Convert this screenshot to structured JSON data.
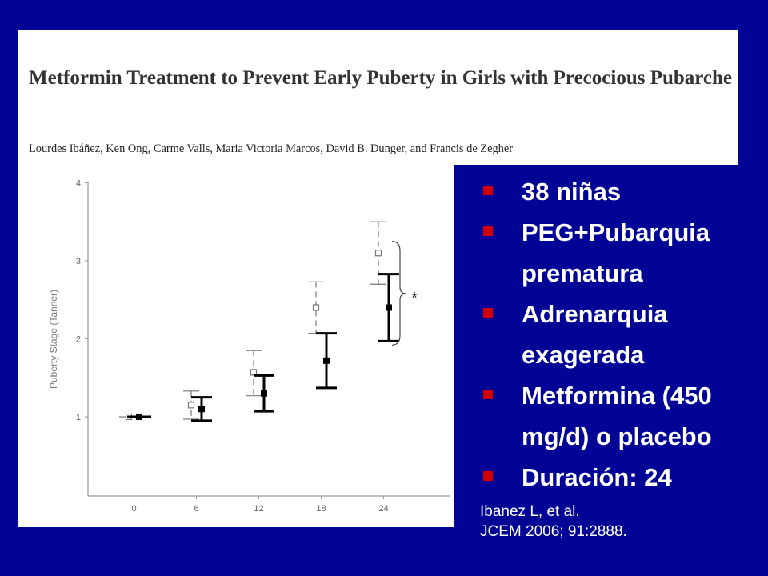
{
  "paper": {
    "title": "Metformin Treatment to Prevent Early Puberty in Girls with Precocious Pubarche",
    "authors": "Lourdes Ibáñez, Ken Ong, Carme Valls, Maria Victoria Marcos, David B. Dunger, and Francis de Zegher"
  },
  "bullets": [
    {
      "text": "38 niñas"
    },
    {
      "text": "PEG+Pubarquia prematura"
    },
    {
      "text": "Adrenarquia exagerada"
    },
    {
      "text": "Metformina (450 mg/d) o placebo"
    },
    {
      "text": "Duración: 24"
    }
  ],
  "citation": {
    "line1": "Ibanez L, et al.",
    "line2": "JCEM 2006; 91:2888."
  },
  "colors": {
    "background": "#020495",
    "bullet_marker": "#d40000",
    "placebo": "#777777",
    "metformin": "#000000"
  },
  "chart_data": {
    "type": "scatter",
    "ylabel": "Puberty Stage (Tanner)",
    "xlabel": "",
    "x": [
      0,
      6,
      12,
      18,
      24
    ],
    "x_ticks": [
      "0",
      "6",
      "12",
      "18",
      "24"
    ],
    "y_ticks": [
      "1",
      "2",
      "3",
      "4"
    ],
    "ylim": [
      0,
      4
    ],
    "series": [
      {
        "style": "open squares, dashed error bars",
        "mean": [
          1.0,
          1.15,
          1.57,
          2.4,
          3.1
        ],
        "lower": [
          1.0,
          0.97,
          1.27,
          2.07,
          2.7
        ],
        "upper": [
          1.0,
          1.33,
          1.85,
          2.73,
          3.5
        ]
      },
      {
        "style": "filled squares, solid error bars",
        "mean": [
          1.0,
          1.1,
          1.3,
          1.72,
          2.4
        ],
        "lower": [
          1.0,
          0.95,
          1.07,
          1.37,
          1.97
        ],
        "upper": [
          1.0,
          1.25,
          1.53,
          2.07,
          2.83
        ]
      }
    ],
    "annotation": "*",
    "grid": false
  }
}
